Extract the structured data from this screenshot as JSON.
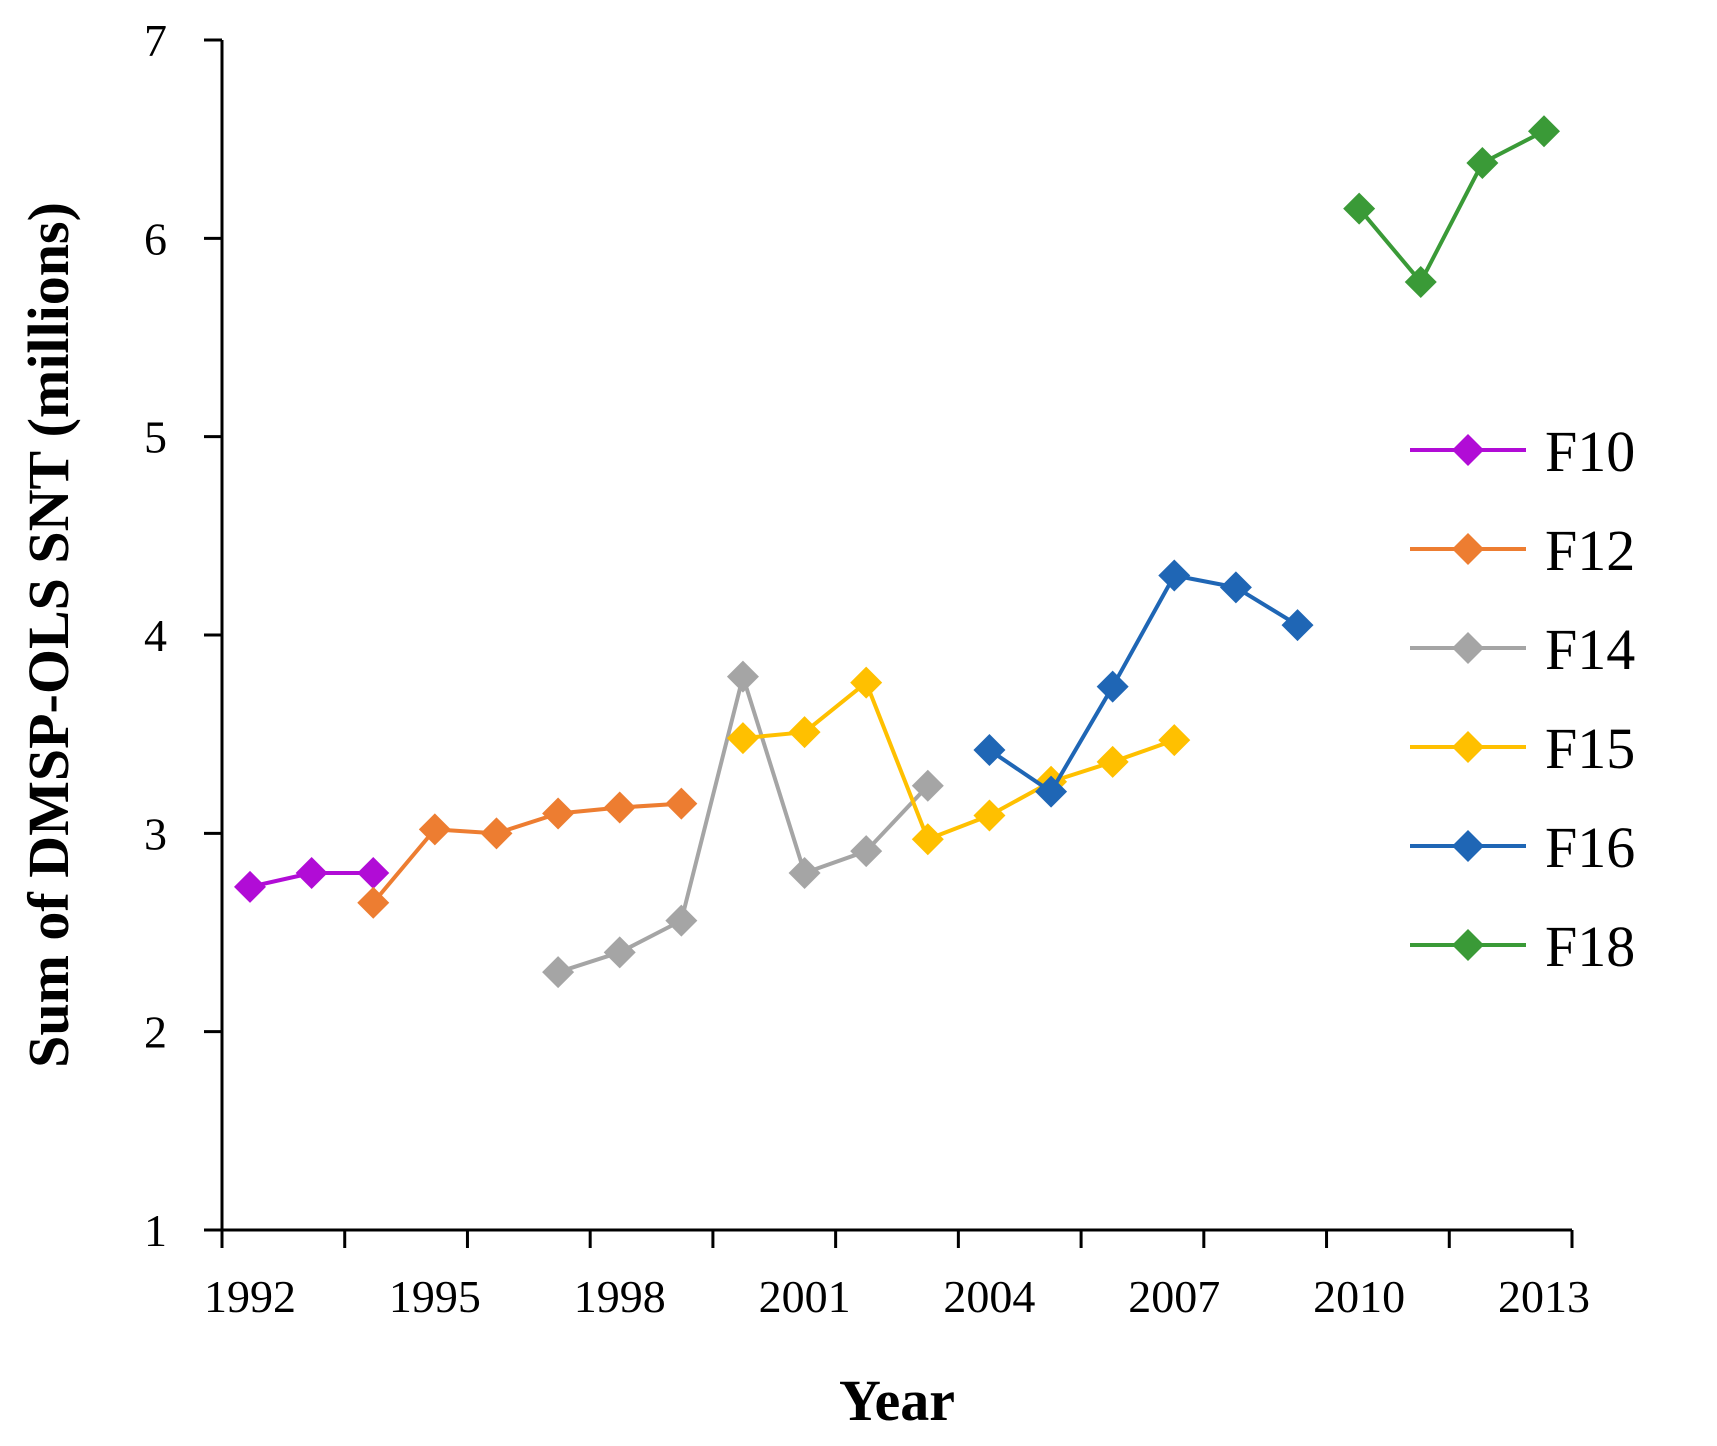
{
  "chart_data": {
    "type": "line",
    "title": "",
    "xlabel": "Year",
    "ylabel": "Sum of DMSP-OLS SNT (millions)",
    "xlim": [
      1992,
      2013
    ],
    "ylim": [
      1,
      7
    ],
    "x_ticks": [
      1992,
      1995,
      1998,
      2001,
      2004,
      2007,
      2010,
      2013
    ],
    "x_tick_labels": [
      "1992",
      "1995",
      "1998",
      "2001",
      "2004",
      "2007",
      "2010",
      "2013"
    ],
    "y_ticks": [
      1,
      2,
      3,
      4,
      5,
      6,
      7
    ],
    "y_tick_labels": [
      "1",
      "2",
      "3",
      "4",
      "5",
      "6",
      "7"
    ],
    "grid": false,
    "legend_position": "right",
    "series": [
      {
        "name": "F10",
        "color": "#b10cd6",
        "x": [
          1992,
          1993,
          1994
        ],
        "y": [
          2.73,
          2.8,
          2.8
        ]
      },
      {
        "name": "F12",
        "color": "#ed7d31",
        "x": [
          1994,
          1995,
          1996,
          1997,
          1998,
          1999
        ],
        "y": [
          2.65,
          3.02,
          3.0,
          3.1,
          3.13,
          3.15
        ]
      },
      {
        "name": "F14",
        "color": "#a5a5a5",
        "x": [
          1997,
          1998,
          1999,
          2000,
          2001,
          2002,
          2003
        ],
        "y": [
          2.3,
          2.4,
          2.56,
          3.79,
          2.8,
          2.91,
          3.24
        ]
      },
      {
        "name": "F15",
        "color": "#ffc000",
        "x": [
          2000,
          2001,
          2002,
          2003,
          2004,
          2005,
          2006,
          2007
        ],
        "y": [
          3.48,
          3.51,
          3.76,
          2.97,
          3.09,
          3.26,
          3.36,
          3.47
        ]
      },
      {
        "name": "F16",
        "color": "#1f66b5",
        "x": [
          2004,
          2005,
          2006,
          2007,
          2008,
          2009
        ],
        "y": [
          3.42,
          3.21,
          3.74,
          4.3,
          4.24,
          4.05
        ]
      },
      {
        "name": "F18",
        "color": "#3a9a37",
        "x": [
          2010,
          2011,
          2012,
          2013
        ],
        "y": [
          6.15,
          5.78,
          6.38,
          6.54
        ]
      }
    ]
  }
}
